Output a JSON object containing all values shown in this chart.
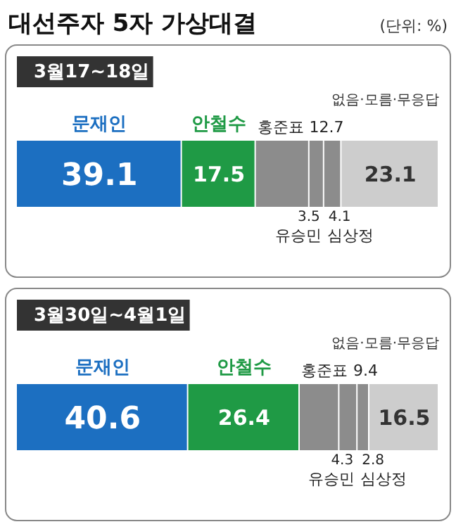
{
  "chart_data": [
    {
      "type": "bar",
      "orientation": "horizontal",
      "stacked": true,
      "title": "대선주자 5자 가상대결",
      "subtitle": "3월17~18일",
      "annotations": [
        "(단위: %)"
      ],
      "categories": [
        null
      ],
      "xlim": [
        0,
        100
      ],
      "tick_labels": false,
      "data_labels": true,
      "series": [
        {
          "name": "문재인",
          "color": "#1c6fc1",
          "values": [
            39.1
          ]
        },
        {
          "name": "안철수",
          "color": "#1f9a45",
          "values": [
            17.5
          ]
        },
        {
          "name": "홍준표",
          "color": "#8c8c8c",
          "values": [
            12.7
          ]
        },
        {
          "name": "유승민",
          "color": "#8c8c8c",
          "values": [
            3.5
          ]
        },
        {
          "name": "심상정",
          "color": "#8c8c8c",
          "values": [
            4.1
          ]
        },
        {
          "name": "없음·모름·무응답",
          "color": "#cdcdcd",
          "values": [
            23.1
          ]
        }
      ]
    },
    {
      "type": "bar",
      "orientation": "horizontal",
      "stacked": true,
      "subtitle": "3월30일~4월1일",
      "categories": [
        null
      ],
      "xlim": [
        0,
        100
      ],
      "tick_labels": false,
      "data_labels": true,
      "series": [
        {
          "name": "문재인",
          "color": "#1c6fc1",
          "values": [
            40.6
          ]
        },
        {
          "name": "안철수",
          "color": "#1f9a45",
          "values": [
            26.4
          ]
        },
        {
          "name": "홍준표",
          "color": "#8c8c8c",
          "values": [
            9.4
          ]
        },
        {
          "name": "유승민",
          "color": "#8c8c8c",
          "values": [
            4.3
          ]
        },
        {
          "name": "심상정",
          "color": "#8c8c8c",
          "values": [
            2.8
          ]
        },
        {
          "name": "없음·모름·무응답",
          "color": "#cdcdcd",
          "values": [
            16.5
          ]
        }
      ]
    }
  ]
}
